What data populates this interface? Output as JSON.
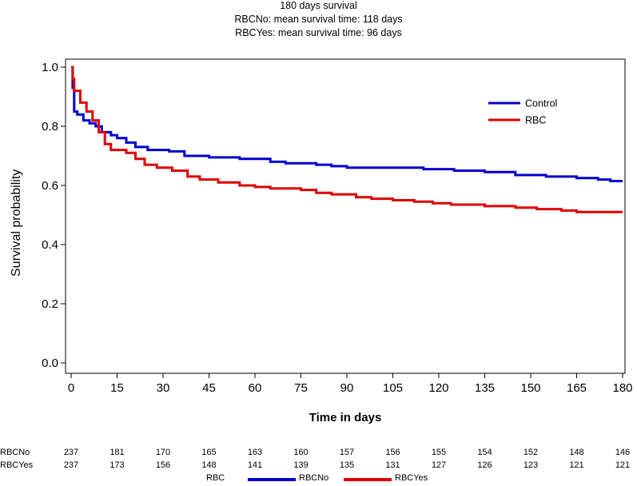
{
  "titles": {
    "line1": "180 days survival",
    "line2": "RBCNo: mean survival time: 118 days",
    "line3": "RBCYes: mean survival time: 96 days"
  },
  "chart_data": {
    "type": "line",
    "xlabel": "Time in days",
    "ylabel": "Survival probability",
    "xlim": [
      0,
      180
    ],
    "ylim": [
      0,
      1
    ],
    "x_ticks": [
      "0",
      "15",
      "30",
      "45",
      "60",
      "75",
      "90",
      "105",
      "120",
      "135",
      "150",
      "165",
      "180"
    ],
    "y_ticks": [
      "0.0",
      "0.2",
      "0.4",
      "0.6",
      "0.8",
      "1.0"
    ],
    "grid": false,
    "legend": {
      "placement": "top-right",
      "entries": [
        "Control",
        "RBC"
      ]
    },
    "series": [
      {
        "name": "Control",
        "color": "#0000cc",
        "points": [
          [
            0,
            1.0
          ],
          [
            0.5,
            0.93
          ],
          [
            1,
            0.85
          ],
          [
            2,
            0.84
          ],
          [
            4,
            0.82
          ],
          [
            6,
            0.81
          ],
          [
            8,
            0.8
          ],
          [
            10,
            0.78
          ],
          [
            13,
            0.77
          ],
          [
            15,
            0.76
          ],
          [
            18,
            0.745
          ],
          [
            21,
            0.73
          ],
          [
            25,
            0.72
          ],
          [
            32,
            0.715
          ],
          [
            37,
            0.7
          ],
          [
            45,
            0.695
          ],
          [
            55,
            0.69
          ],
          [
            65,
            0.68
          ],
          [
            70,
            0.675
          ],
          [
            80,
            0.67
          ],
          [
            85,
            0.665
          ],
          [
            90,
            0.66
          ],
          [
            105,
            0.66
          ],
          [
            115,
            0.655
          ],
          [
            125,
            0.65
          ],
          [
            135,
            0.645
          ],
          [
            145,
            0.635
          ],
          [
            155,
            0.63
          ],
          [
            165,
            0.625
          ],
          [
            172,
            0.62
          ],
          [
            176,
            0.615
          ],
          [
            180,
            0.615
          ]
        ]
      },
      {
        "name": "RBC",
        "color": "#dd0000",
        "points": [
          [
            0,
            1.0
          ],
          [
            0.5,
            0.96
          ],
          [
            1,
            0.92
          ],
          [
            3,
            0.88
          ],
          [
            5,
            0.85
          ],
          [
            7,
            0.82
          ],
          [
            9,
            0.78
          ],
          [
            11,
            0.74
          ],
          [
            13,
            0.72
          ],
          [
            18,
            0.71
          ],
          [
            21,
            0.69
          ],
          [
            24,
            0.67
          ],
          [
            28,
            0.66
          ],
          [
            33,
            0.65
          ],
          [
            38,
            0.63
          ],
          [
            42,
            0.62
          ],
          [
            48,
            0.61
          ],
          [
            55,
            0.6
          ],
          [
            60,
            0.595
          ],
          [
            65,
            0.59
          ],
          [
            75,
            0.585
          ],
          [
            80,
            0.575
          ],
          [
            85,
            0.57
          ],
          [
            93,
            0.56
          ],
          [
            98,
            0.555
          ],
          [
            105,
            0.55
          ],
          [
            112,
            0.545
          ],
          [
            118,
            0.54
          ],
          [
            124,
            0.535
          ],
          [
            135,
            0.53
          ],
          [
            145,
            0.525
          ],
          [
            152,
            0.52
          ],
          [
            160,
            0.515
          ],
          [
            165,
            0.51
          ],
          [
            180,
            0.51
          ]
        ]
      }
    ],
    "risk_table": {
      "rows": [
        {
          "label": "RBCNo",
          "values": [
            "237",
            "181",
            "170",
            "165",
            "163",
            "160",
            "157",
            "156",
            "155",
            "154",
            "152",
            "148",
            "146"
          ]
        },
        {
          "label": "RBCYes",
          "values": [
            "237",
            "173",
            "156",
            "148",
            "141",
            "139",
            "135",
            "131",
            "127",
            "126",
            "123",
            "121",
            "121"
          ]
        }
      ]
    },
    "bottom_legend": {
      "title": "RBC",
      "entries": [
        {
          "label": "RBCNo",
          "color": "#0000cc"
        },
        {
          "label": "RBCYes",
          "color": "#dd0000"
        }
      ]
    }
  }
}
